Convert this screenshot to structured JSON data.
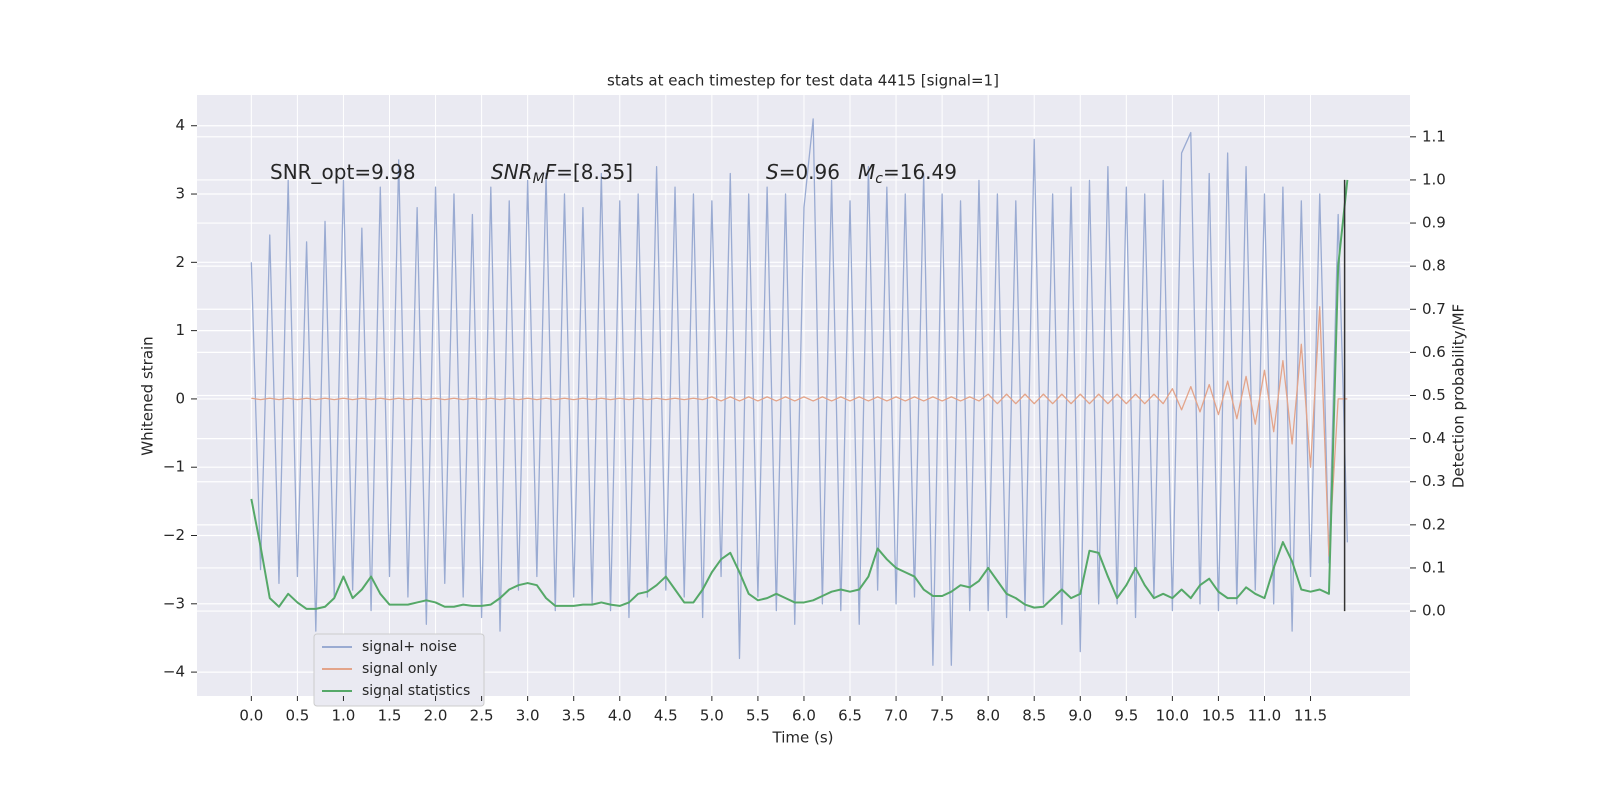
{
  "chart_data": {
    "type": "line",
    "title": "stats at each timestep for test data 4415 [signal=1]",
    "x_label": "Time (s)",
    "y_label": "Whitened strain",
    "y2_label": "Detection probability/MF",
    "xlim": [
      -0.59,
      12.58
    ],
    "ylim": [
      -4.35,
      4.45
    ],
    "y2lim": [
      -0.197,
      1.197
    ],
    "xticks": [
      {
        "value": 0,
        "label": "0.0"
      },
      0.5,
      {
        "value": 1,
        "label": "1.0"
      },
      1.5,
      {
        "value": 2,
        "label": "2.0"
      },
      2.5,
      {
        "value": 3,
        "label": "3.0"
      },
      3.5,
      {
        "value": 4,
        "label": "4.0"
      },
      4.5,
      {
        "value": 5,
        "label": "5.0"
      },
      5.5,
      {
        "value": 6,
        "label": "6.0"
      },
      6.5,
      {
        "value": 7,
        "label": "7.0"
      },
      7.5,
      {
        "value": 8,
        "label": "8.0"
      },
      8.5,
      {
        "value": 9,
        "label": "9.0"
      },
      9.5,
      {
        "value": 10,
        "label": "10.0"
      },
      10.5,
      {
        "value": 11,
        "label": "11.0"
      },
      11.5
    ],
    "yticks": [
      {
        "value": -4,
        "label": "−4"
      },
      {
        "value": -3,
        "label": "−3"
      },
      {
        "value": -2,
        "label": "−2"
      },
      {
        "value": -1,
        "label": "−1"
      },
      0,
      1,
      2,
      3,
      4
    ],
    "y2ticks": [
      {
        "value": 0,
        "label": "0.0"
      },
      0.1,
      0.2,
      0.3,
      0.4,
      0.5,
      0.6,
      0.7,
      0.8,
      0.9,
      {
        "value": 1,
        "label": "1.0"
      },
      1.1
    ],
    "grid": true,
    "legend": "lower left",
    "x": [
      0,
      0.1,
      0.2,
      0.3,
      0.4,
      0.5,
      0.6,
      0.7,
      0.8,
      0.9,
      1,
      1.1,
      1.2,
      1.3,
      1.4,
      1.5,
      1.6,
      1.7,
      1.8,
      1.9,
      2,
      2.1,
      2.2,
      2.3,
      2.4,
      2.5,
      2.6,
      2.7,
      2.8,
      2.9,
      3,
      3.1,
      3.2,
      3.3,
      3.4,
      3.5,
      3.6,
      3.7,
      3.8,
      3.9,
      4,
      4.1,
      4.2,
      4.3,
      4.4,
      4.5,
      4.6,
      4.7,
      4.8,
      4.9,
      5,
      5.1,
      5.2,
      5.3,
      5.4,
      5.5,
      5.6,
      5.7,
      5.8,
      5.9,
      6,
      6.1,
      6.2,
      6.3,
      6.4,
      6.5,
      6.6,
      6.7,
      6.8,
      6.9,
      7,
      7.1,
      7.2,
      7.3,
      7.4,
      7.5,
      7.6,
      7.7,
      7.8,
      7.9,
      8,
      8.1,
      8.2,
      8.3,
      8.4,
      8.5,
      8.6,
      8.7,
      8.8,
      8.9,
      9,
      9.1,
      9.2,
      9.3,
      9.4,
      9.5,
      9.6,
      9.7,
      9.8,
      9.9,
      10,
      10.1,
      10.2,
      10.3,
      10.4,
      10.5,
      10.6,
      10.7,
      10.8,
      10.9,
      11,
      11.1,
      11.2,
      11.3,
      11.4,
      11.5,
      11.6,
      11.7,
      11.8,
      11.9
    ],
    "series": [
      {
        "name": "signal+ noise",
        "color": "#9aabd2",
        "values": [
          2.0,
          -2.5,
          2.4,
          -2.7,
          3.2,
          -2.6,
          2.3,
          -3.4,
          2.6,
          -2.9,
          3.2,
          -2.8,
          2.5,
          -3.1,
          3.1,
          -2.6,
          3.5,
          -2.9,
          2.8,
          -3.3,
          3.1,
          -2.7,
          3.0,
          -2.9,
          2.7,
          -3.2,
          3.1,
          -3.4,
          2.9,
          -2.8,
          3.2,
          -2.6,
          3.3,
          -3.1,
          3.0,
          -2.9,
          2.8,
          -3.0,
          3.3,
          -3.1,
          2.9,
          -3.2,
          3.0,
          -2.9,
          3.4,
          -2.8,
          3.1,
          -2.9,
          3.0,
          -3.2,
          2.9,
          -2.6,
          3.3,
          -3.8,
          3.0,
          -2.9,
          3.1,
          -3.1,
          3.0,
          -3.3,
          2.8,
          4.1,
          -3.0,
          3.2,
          -3.1,
          2.9,
          -3.3,
          3.4,
          -2.8,
          3.1,
          -3.0,
          3.0,
          -2.9,
          3.3,
          -3.9,
          3.0,
          -3.9,
          2.9,
          -3.1,
          3.2,
          -3.1,
          3.0,
          -3.2,
          2.9,
          -3.1,
          3.8,
          -3.0,
          3.0,
          -3.3,
          3.1,
          -3.7,
          3.2,
          -3.0,
          3.4,
          -3.0,
          3.1,
          -3.2,
          3.0,
          -2.9,
          3.2,
          -3.1,
          3.6,
          3.9,
          -3.0,
          3.3,
          -3.1,
          3.6,
          -3.0,
          3.4,
          -2.8,
          3.0,
          -3.0,
          3.1,
          -3.4,
          2.9,
          -2.6,
          3.0,
          -2.4,
          2.7,
          -2.1
        ]
      },
      {
        "name": "signal only",
        "color": "#e3a48a",
        "values": [
          0.01,
          -0.01,
          0.01,
          -0.01,
          0.01,
          -0.01,
          0.01,
          -0.01,
          0.01,
          -0.01,
          0.01,
          -0.01,
          0.01,
          -0.01,
          0.01,
          -0.01,
          0.01,
          -0.01,
          0.01,
          -0.01,
          0.01,
          -0.01,
          0.01,
          -0.01,
          0.01,
          -0.01,
          0.01,
          -0.01,
          0.01,
          -0.01,
          0.01,
          -0.01,
          0.01,
          -0.01,
          0.01,
          -0.01,
          0.01,
          -0.01,
          0.01,
          -0.01,
          0.01,
          -0.01,
          0.01,
          -0.01,
          0.01,
          -0.01,
          0.01,
          -0.01,
          0.01,
          -0.01,
          0.03,
          -0.03,
          0.03,
          -0.03,
          0.03,
          -0.03,
          0.03,
          -0.03,
          0.03,
          -0.03,
          0.03,
          -0.03,
          0.03,
          -0.03,
          0.03,
          -0.03,
          0.03,
          -0.03,
          0.03,
          -0.03,
          0.03,
          -0.03,
          0.03,
          -0.03,
          0.03,
          -0.03,
          0.03,
          -0.03,
          0.03,
          -0.03,
          0.07,
          -0.07,
          0.07,
          -0.07,
          0.07,
          -0.07,
          0.07,
          -0.07,
          0.07,
          -0.07,
          0.07,
          -0.07,
          0.07,
          -0.07,
          0.07,
          -0.07,
          0.07,
          -0.07,
          0.07,
          -0.07,
          0.15,
          -0.16,
          0.18,
          -0.19,
          0.21,
          -0.23,
          0.26,
          -0.29,
          0.33,
          -0.37,
          0.42,
          -0.48,
          0.56,
          -0.66,
          0.8,
          -1.0,
          1.35,
          -2.3,
          0,
          0
        ]
      },
      {
        "name": "signal statistics",
        "color": "#55a868",
        "axis": "y2",
        "values": [
          0.26,
          0.15,
          0.03,
          0.01,
          0.04,
          0.02,
          0.005,
          0.005,
          0.01,
          0.03,
          0.08,
          0.03,
          0.05,
          0.08,
          0.04,
          0.015,
          0.015,
          0.015,
          0.02,
          0.025,
          0.02,
          0.01,
          0.01,
          0.015,
          0.012,
          0.012,
          0.015,
          0.03,
          0.05,
          0.06,
          0.065,
          0.06,
          0.03,
          0.012,
          0.012,
          0.012,
          0.015,
          0.015,
          0.02,
          0.015,
          0.012,
          0.02,
          0.04,
          0.045,
          0.06,
          0.08,
          0.05,
          0.02,
          0.02,
          0.05,
          0.09,
          0.12,
          0.135,
          0.09,
          0.04,
          0.025,
          0.03,
          0.04,
          0.03,
          0.02,
          0.02,
          0.025,
          0.035,
          0.045,
          0.05,
          0.045,
          0.05,
          0.08,
          0.145,
          0.12,
          0.1,
          0.09,
          0.08,
          0.05,
          0.035,
          0.035,
          0.045,
          0.06,
          0.055,
          0.07,
          0.1,
          0.07,
          0.04,
          0.03,
          0.015,
          0.008,
          0.01,
          0.03,
          0.05,
          0.03,
          0.04,
          0.14,
          0.135,
          0.08,
          0.03,
          0.06,
          0.1,
          0.06,
          0.03,
          0.04,
          0.03,
          0.05,
          0.03,
          0.06,
          0.075,
          0.045,
          0.03,
          0.03,
          0.055,
          0.04,
          0.03,
          0.1,
          0.16,
          0.115,
          0.05,
          0.045,
          0.05,
          0.04,
          0.8,
          1.0
        ]
      }
    ],
    "vline": {
      "x": 11.87,
      "y2": [
        0,
        1
      ],
      "color": "#333333"
    },
    "annotations": [
      {
        "spans": [
          {
            "text": "SNR_opt=9.98"
          }
        ]
      },
      {
        "spans": [
          {
            "text": "SNR",
            "style": "italic"
          },
          {
            "text": "M",
            "style": "italic-sub"
          },
          {
            "text": "F",
            "style": "italic"
          },
          {
            "text": "=[8.35]"
          }
        ]
      },
      {
        "spans": [
          {
            "text": "S",
            "style": "italic"
          },
          {
            "text": "=0.96"
          }
        ]
      },
      {
        "spans": [
          {
            "text": "M",
            "style": "italic"
          },
          {
            "text": "c",
            "style": "italic-sub"
          },
          {
            "text": "=16.49"
          }
        ]
      }
    ]
  }
}
